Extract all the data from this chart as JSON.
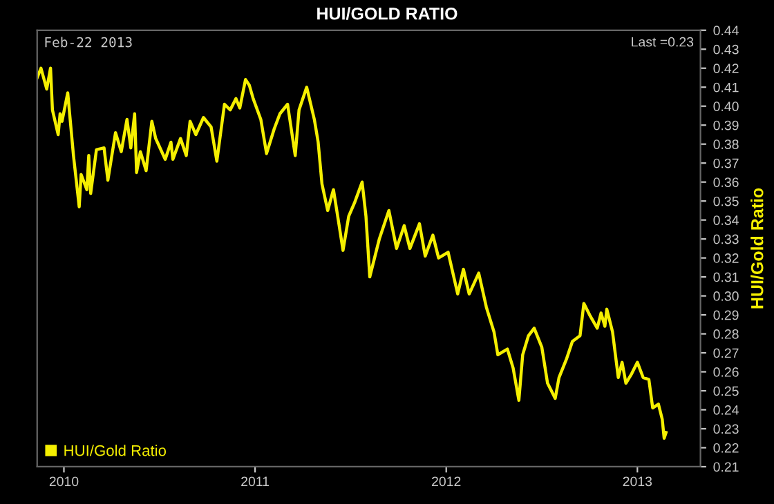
{
  "chart_data": {
    "type": "line",
    "title": "HUI/GOLD RATIO",
    "y2label": "HUI/Gold Ratio",
    "annotations": [
      "Feb-22 2013",
      "Last =0.23"
    ],
    "legend": "bottom left",
    "grid": false,
    "marker": "none",
    "line_style": "solid",
    "xlim": [
      2009.86,
      2013.33
    ],
    "xticks": [
      2010,
      2011,
      2012,
      2013
    ],
    "y2lim": [
      0.21,
      0.44
    ],
    "y2ticks": [
      {
        "value": 0.21,
        "label": "0.21"
      },
      {
        "value": 0.22,
        "label": "0.22"
      },
      {
        "value": 0.23,
        "label": "0.23"
      },
      {
        "value": 0.24,
        "label": "0.24"
      },
      {
        "value": 0.25,
        "label": "0.25"
      },
      {
        "value": 0.26,
        "label": "0.26"
      },
      {
        "value": 0.27,
        "label": "0.27"
      },
      {
        "value": 0.28,
        "label": "0.28"
      },
      {
        "value": 0.29,
        "label": "0.29"
      },
      {
        "value": 0.3,
        "label": "0.30"
      },
      {
        "value": 0.31,
        "label": "0.31"
      },
      {
        "value": 0.32,
        "label": "0.32"
      },
      {
        "value": 0.33,
        "label": "0.33"
      },
      {
        "value": 0.34,
        "label": "0.34"
      },
      {
        "value": 0.35,
        "label": "0.35"
      },
      {
        "value": 0.36,
        "label": "0.36"
      },
      {
        "value": 0.37,
        "label": "0.37"
      },
      {
        "value": 0.38,
        "label": "0.38"
      },
      {
        "value": 0.39,
        "label": "0.39"
      },
      {
        "value": 0.4,
        "label": "0.40"
      },
      {
        "value": 0.41,
        "label": "0.41"
      },
      {
        "value": 0.42,
        "label": "0.42"
      },
      {
        "value": 0.43,
        "label": "0.43"
      },
      {
        "value": 0.44,
        "label": "0.44"
      }
    ],
    "series": [
      {
        "name": "HUI/Gold Ratio",
        "color": "#f5ef00",
        "axis": "y2",
        "x": [
          2009.86,
          2009.88,
          2009.91,
          2009.93,
          2009.94,
          2009.97,
          2009.98,
          2009.99,
          2010.02,
          2010.05,
          2010.08,
          2010.09,
          2010.12,
          2010.13,
          2010.14,
          2010.17,
          2010.21,
          2010.23,
          2010.27,
          2010.3,
          2010.33,
          2010.35,
          2010.37,
          2010.38,
          2010.4,
          2010.43,
          2010.46,
          2010.48,
          2010.53,
          2010.56,
          2010.57,
          2010.61,
          2010.64,
          2010.66,
          2010.69,
          2010.73,
          2010.77,
          2010.78,
          2010.8,
          2010.84,
          2010.87,
          2010.9,
          2010.92,
          2010.95,
          2010.97,
          2010.99,
          2011.03,
          2011.06,
          2011.1,
          2011.13,
          2011.17,
          2011.21,
          2011.23,
          2011.27,
          2011.31,
          2011.33,
          2011.35,
          2011.38,
          2011.41,
          2011.44,
          2011.46,
          2011.49,
          2011.52,
          2011.56,
          2011.58,
          2011.6,
          2011.65,
          2011.7,
          2011.74,
          2011.78,
          2011.81,
          2011.86,
          2011.89,
          2011.93,
          2011.96,
          2012.01,
          2012.06,
          2012.09,
          2012.12,
          2012.17,
          2012.21,
          2012.25,
          2012.27,
          2012.32,
          2012.35,
          2012.38,
          2012.4,
          2012.43,
          2012.46,
          2012.5,
          2012.53,
          2012.57,
          2012.59,
          2012.63,
          2012.66,
          2012.7,
          2012.72,
          2012.75,
          2012.79,
          2012.81,
          2012.83,
          2012.84,
          2012.87,
          2012.9,
          2012.92,
          2012.94,
          2012.97,
          2013.0,
          2013.03,
          2013.06,
          2013.08,
          2013.11,
          2013.13,
          2013.14,
          2013.15
        ],
        "values": [
          0.415,
          0.42,
          0.409,
          0.42,
          0.398,
          0.385,
          0.396,
          0.392,
          0.407,
          0.374,
          0.347,
          0.364,
          0.356,
          0.374,
          0.354,
          0.377,
          0.378,
          0.361,
          0.386,
          0.376,
          0.393,
          0.378,
          0.396,
          0.365,
          0.376,
          0.366,
          0.392,
          0.383,
          0.372,
          0.381,
          0.372,
          0.383,
          0.374,
          0.392,
          0.385,
          0.394,
          0.389,
          0.383,
          0.371,
          0.401,
          0.398,
          0.404,
          0.399,
          0.414,
          0.411,
          0.404,
          0.393,
          0.375,
          0.388,
          0.396,
          0.401,
          0.374,
          0.398,
          0.41,
          0.393,
          0.381,
          0.359,
          0.345,
          0.356,
          0.337,
          0.324,
          0.342,
          0.349,
          0.36,
          0.342,
          0.31,
          0.33,
          0.345,
          0.325,
          0.337,
          0.325,
          0.338,
          0.321,
          0.332,
          0.32,
          0.323,
          0.301,
          0.314,
          0.301,
          0.312,
          0.294,
          0.281,
          0.269,
          0.272,
          0.262,
          0.245,
          0.269,
          0.279,
          0.283,
          0.273,
          0.254,
          0.246,
          0.257,
          0.267,
          0.276,
          0.279,
          0.296,
          0.29,
          0.283,
          0.291,
          0.284,
          0.293,
          0.281,
          0.257,
          0.265,
          0.254,
          0.259,
          0.265,
          0.257,
          0.256,
          0.241,
          0.243,
          0.235,
          0.225,
          0.228
        ]
      }
    ]
  }
}
